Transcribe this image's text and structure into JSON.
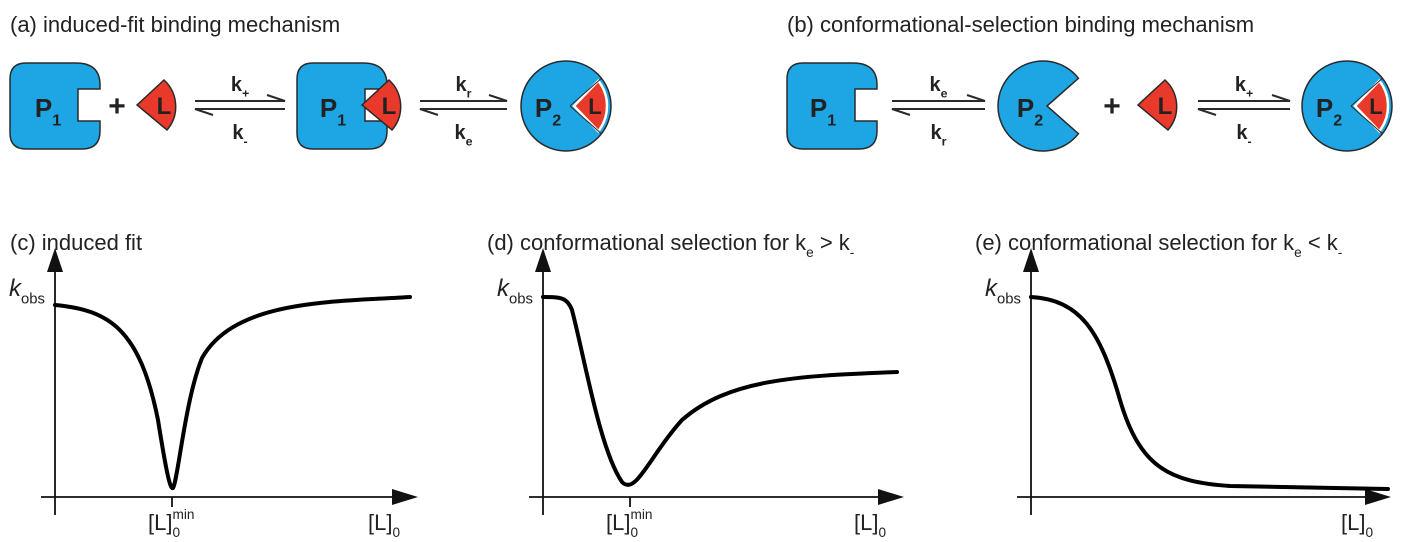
{
  "panel_a": {
    "title": "(a) induced-fit binding mechanism",
    "reactant_protein": {
      "label": "P",
      "sub": "1"
    },
    "plus": "+",
    "ligand": "L",
    "step_1": {
      "forward": {
        "label": "k",
        "sub": "+"
      },
      "backward": {
        "label": "k",
        "sub": "-"
      }
    },
    "intermediate": {
      "protein": {
        "label": "P",
        "sub": "1"
      },
      "ligand": "L"
    },
    "step_2": {
      "forward": {
        "label": "k",
        "sub": "r"
      },
      "backward": {
        "label": "k",
        "sub": "e"
      }
    },
    "product": {
      "protein": {
        "label": "P",
        "sub": "2"
      },
      "ligand": "L"
    }
  },
  "panel_b": {
    "title": "(b) conformational-selection binding mechanism",
    "reactant_protein": {
      "label": "P",
      "sub": "1"
    },
    "step_1": {
      "forward": {
        "label": "k",
        "sub": "e"
      },
      "backward": {
        "label": "k",
        "sub": "r"
      }
    },
    "intermediate_protein": {
      "label": "P",
      "sub": "2"
    },
    "plus": "+",
    "ligand": "L",
    "step_2": {
      "forward": {
        "label": "k",
        "sub": "+"
      },
      "backward": {
        "label": "k",
        "sub": "-"
      }
    },
    "product": {
      "protein": {
        "label": "P",
        "sub": "2"
      },
      "ligand": "L"
    }
  },
  "panel_c": {
    "title": "(c) induced fit",
    "y_label": {
      "label": "k",
      "sub": "obs"
    },
    "x_label": {
      "label": "[L]",
      "sub": "0"
    },
    "x_marker": {
      "label": "[L]",
      "sub": "0",
      "sup": "min"
    }
  },
  "panel_d": {
    "title": {
      "text": "(d) conformational selection for k",
      "sub_1": "e",
      "mid": " > k",
      "sub_2": "-"
    },
    "y_label": {
      "label": "k",
      "sub": "obs"
    },
    "x_label": {
      "label": "[L]",
      "sub": "0"
    },
    "x_marker": {
      "label": "[L]",
      "sub": "0",
      "sup": "min"
    }
  },
  "panel_e": {
    "title": {
      "text": "(e) conformational selection for k",
      "sub_1": "e",
      "mid": " < k",
      "sub_2": "-"
    },
    "y_label": {
      "label": "k",
      "sub": "obs"
    },
    "x_label": {
      "label": "[L]",
      "sub": "0"
    }
  }
}
